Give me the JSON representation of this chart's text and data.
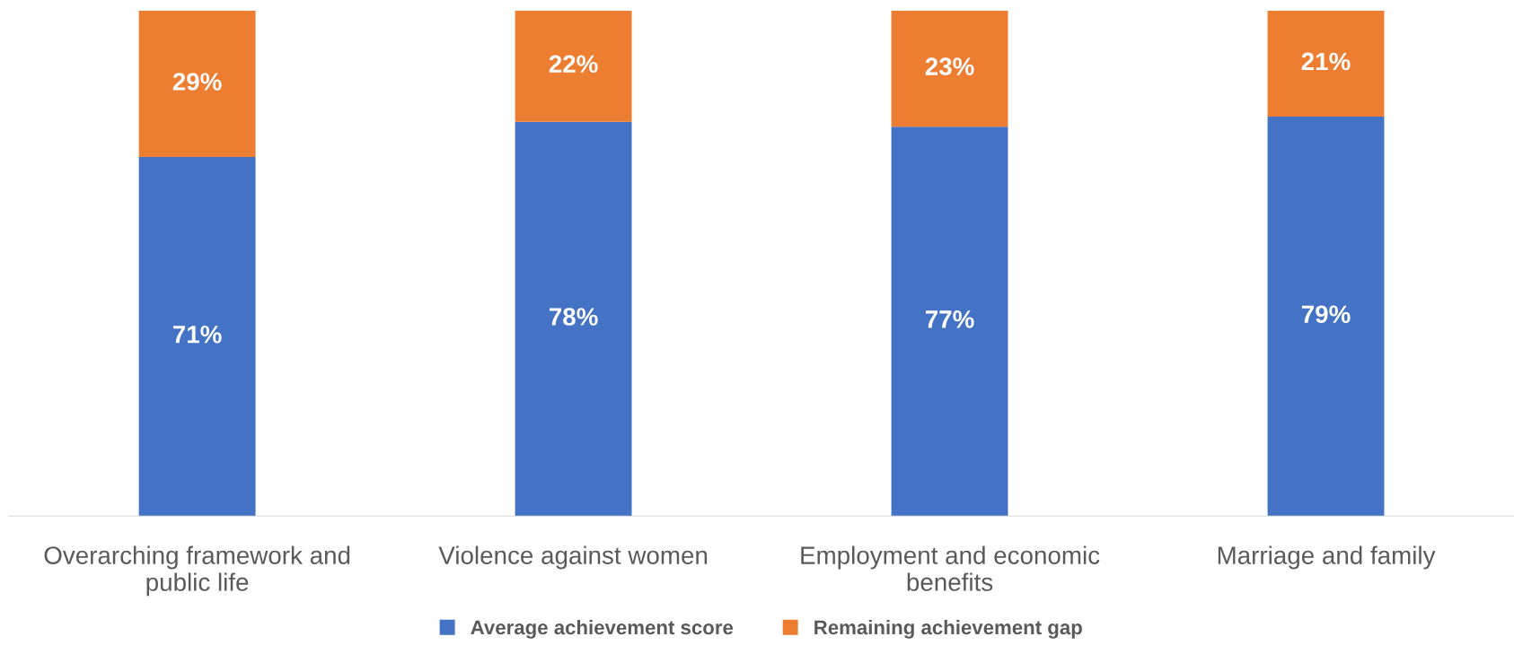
{
  "chart_data": {
    "type": "bar",
    "stacked": true,
    "categories": [
      "Overarching framework and public life",
      "Violence against women",
      "Employment and economic benefits",
      "Marriage and family"
    ],
    "series": [
      {
        "name": "Average achievement score",
        "color": "#4472c4",
        "values": [
          71,
          78,
          77,
          79
        ],
        "value_labels": [
          "71%",
          "78%",
          "77%",
          "79%"
        ]
      },
      {
        "name": "Remaining achievement gap",
        "color": "#ed7d31",
        "values": [
          29,
          22,
          23,
          21
        ],
        "value_labels": [
          "29%",
          "22%",
          "23%",
          "21%"
        ]
      }
    ],
    "legend": "bottom",
    "grid": false,
    "tick_labels": "x"
  }
}
